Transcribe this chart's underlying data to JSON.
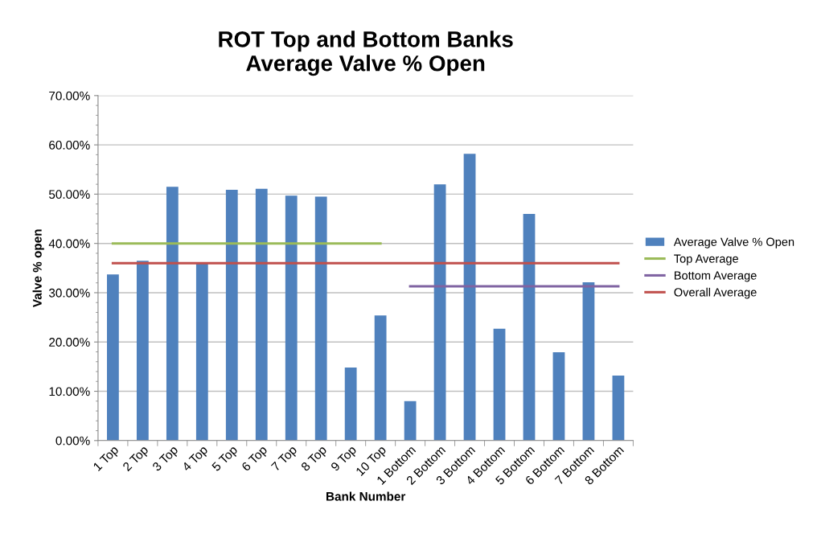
{
  "chart_data": {
    "type": "bar",
    "title": "ROT Top and Bottom Banks\nAverage Valve % Open",
    "xlabel": "Bank Number",
    "ylabel": "Valve % open",
    "categories": [
      "1 Top",
      "2 Top",
      "3 Top",
      "4 Top",
      "5 Top",
      "6 Top",
      "7 Top",
      "8 Top",
      "9 Top",
      "10 Top",
      "1 Bottom",
      "2 Bottom",
      "3 Bottom",
      "4 Bottom",
      "5 Bottom",
      "6 Bottom",
      "7 Bottom",
      "8 Bottom"
    ],
    "series": [
      {
        "name": "Average Valve % Open",
        "color": "#4f81bd",
        "values": [
          33.7,
          36.5,
          51.5,
          36.0,
          50.9,
          51.1,
          49.7,
          49.5,
          14.8,
          25.4,
          8.0,
          52.0,
          58.2,
          22.7,
          46.0,
          17.9,
          32.1,
          13.2
        ]
      },
      {
        "name": "Top Average",
        "type": "line",
        "color": "#9bbb59",
        "values": [
          40.0,
          40.0,
          40.0,
          40.0,
          40.0,
          40.0,
          40.0,
          40.0,
          40.0,
          40.0,
          null,
          null,
          null,
          null,
          null,
          null,
          null,
          null
        ]
      },
      {
        "name": "Bottom Average",
        "type": "line",
        "color": "#8064a2",
        "values": [
          null,
          null,
          null,
          null,
          null,
          null,
          null,
          null,
          null,
          null,
          31.3,
          31.3,
          31.3,
          31.3,
          31.3,
          31.3,
          31.3,
          31.3
        ]
      },
      {
        "name": "Overall Average",
        "type": "line",
        "color": "#c0504d",
        "values": [
          36.0,
          36.0,
          36.0,
          36.0,
          36.0,
          36.0,
          36.0,
          36.0,
          36.0,
          36.0,
          36.0,
          36.0,
          36.0,
          36.0,
          36.0,
          36.0,
          36.0,
          36.0
        ]
      }
    ],
    "ylim": [
      0,
      70
    ],
    "yticks": [
      {
        "value": 0,
        "label": "0.00%"
      },
      {
        "value": 10,
        "label": "10.00%"
      },
      {
        "value": 20,
        "label": "20.00%"
      },
      {
        "value": 30,
        "label": "30.00%"
      },
      {
        "value": 40,
        "label": "40.00%"
      },
      {
        "value": 50,
        "label": "50.00%"
      },
      {
        "value": 60,
        "label": "60.00%"
      },
      {
        "value": 70,
        "label": "70.00%"
      }
    ],
    "grid": "y",
    "legend": "right",
    "marker": "none",
    "line_style": "solid"
  }
}
